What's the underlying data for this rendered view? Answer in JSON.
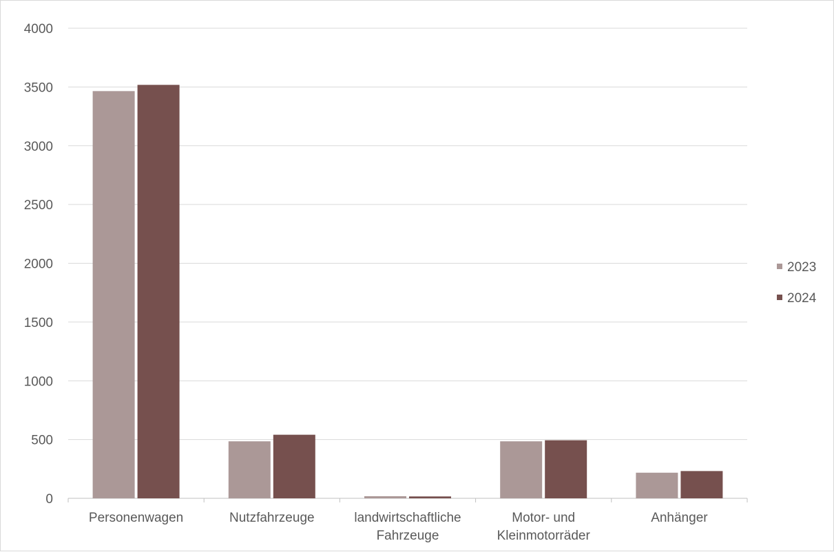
{
  "chart_data": {
    "type": "bar",
    "categories": [
      [
        "Personenwagen"
      ],
      [
        "Nutzfahrzeuge"
      ],
      [
        "landwirtschaftliche",
        "Fahrzeuge"
      ],
      [
        "Motor- und",
        "Kleinmotorräder"
      ],
      [
        "Anhänger"
      ]
    ],
    "series": [
      {
        "name": "2023",
        "color": "#ab9897",
        "values": [
          3465,
          485,
          18,
          485,
          218
        ]
      },
      {
        "name": "2024",
        "color": "#76504e",
        "values": [
          3518,
          541,
          16,
          494,
          232
        ]
      }
    ],
    "ylim": [
      0,
      4000
    ],
    "yticks": [
      "0",
      "500",
      "1000",
      "1500",
      "2000",
      "2500",
      "3000",
      "3500",
      "4000"
    ],
    "grid": true,
    "legend_position": "right"
  }
}
